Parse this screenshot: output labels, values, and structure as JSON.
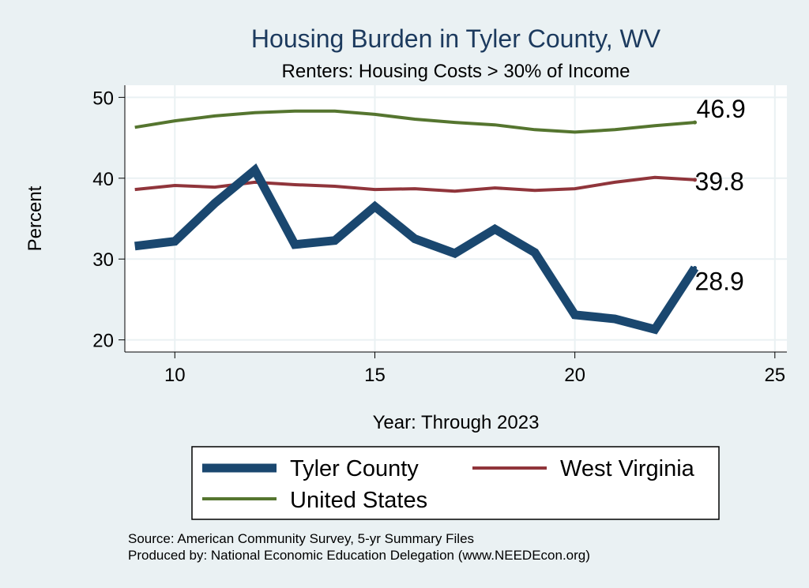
{
  "chart_data": {
    "type": "line",
    "title": "Housing Burden in Tyler County, WV",
    "subtitle": "Renters: Housing Costs > 30% of Income",
    "xlabel": "Year: Through 2023",
    "ylabel": "Percent",
    "xlim": [
      8.75,
      25.3
    ],
    "ylim": [
      18.5,
      51.5
    ],
    "xticks": [
      10,
      15,
      20,
      25
    ],
    "yticks": [
      20,
      30,
      40,
      50
    ],
    "grid": true,
    "x": [
      9,
      10,
      11,
      12,
      13,
      14,
      15,
      16,
      17,
      18,
      19,
      20,
      21,
      22,
      23
    ],
    "series": [
      {
        "name": "Tyler County",
        "color": "#1a476f",
        "values": [
          31.6,
          32.2,
          36.9,
          41.0,
          31.8,
          32.3,
          36.5,
          32.5,
          30.7,
          33.7,
          30.8,
          23.1,
          22.6,
          21.3,
          28.9
        ],
        "end_label": "28.9"
      },
      {
        "name": "West Virginia",
        "color": "#90353b",
        "values": [
          38.6,
          39.1,
          38.9,
          39.5,
          39.2,
          39.0,
          38.6,
          38.7,
          38.4,
          38.8,
          38.5,
          38.7,
          39.5,
          40.1,
          39.8
        ],
        "end_label": "39.8"
      },
      {
        "name": "United States",
        "color": "#55752f",
        "values": [
          46.3,
          47.1,
          47.7,
          48.1,
          48.3,
          48.3,
          47.9,
          47.3,
          46.9,
          46.6,
          46.0,
          45.7,
          46.0,
          46.5,
          46.9
        ],
        "end_label": "46.9"
      }
    ],
    "legend_position": "bottom"
  },
  "source": {
    "line1": "Source: American Community Survey, 5-yr Summary Files",
    "line2": "Produced by: National Economic Education Delegation (www.NEEDEcon.org)"
  }
}
